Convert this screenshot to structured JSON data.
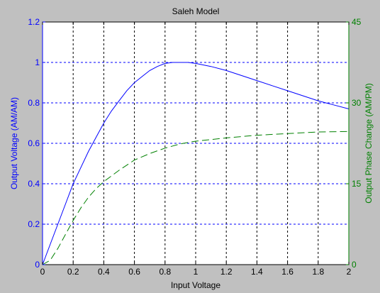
{
  "chart_data": {
    "type": "line",
    "title": "Saleh Model",
    "xlabel": "Input Voltage",
    "ylabel_left": "Output Voltage (AM/AM)",
    "ylabel_right": "Output Phase Change (AM/PM)",
    "xlim": [
      0,
      2
    ],
    "ylim_left": [
      0,
      1.2
    ],
    "ylim_right": [
      0,
      45
    ],
    "xticks": [
      "0",
      "0.2",
      "0.4",
      "0.6",
      "0.8",
      "1",
      "1.2",
      "1.4",
      "1.6",
      "1.8",
      "2"
    ],
    "yticks_left": [
      "0",
      "0.2",
      "0.4",
      "0.6",
      "0.8",
      "1",
      "1.2"
    ],
    "yticks_right": [
      "0",
      "15",
      "30",
      "45"
    ],
    "grid": true,
    "series": [
      {
        "axis": "left",
        "color": "#0000ff",
        "style": "solid",
        "x": [
          0,
          0.05,
          0.1,
          0.15,
          0.2,
          0.25,
          0.3,
          0.35,
          0.4,
          0.45,
          0.5,
          0.55,
          0.6,
          0.65,
          0.7,
          0.75,
          0.8,
          0.85,
          0.9,
          0.95,
          1.0,
          1.1,
          1.2,
          1.3,
          1.4,
          1.5,
          1.6,
          1.7,
          1.8,
          1.9,
          2.0
        ],
        "y": [
          0,
          0.1,
          0.2,
          0.3,
          0.4,
          0.48,
          0.56,
          0.63,
          0.7,
          0.76,
          0.81,
          0.86,
          0.9,
          0.93,
          0.96,
          0.98,
          0.995,
          1.0,
          1.0,
          1.0,
          0.995,
          0.98,
          0.96,
          0.935,
          0.91,
          0.885,
          0.86,
          0.835,
          0.81,
          0.79,
          0.77
        ]
      },
      {
        "axis": "right",
        "color": "#008000",
        "style": "dashed",
        "x": [
          0,
          0.05,
          0.1,
          0.15,
          0.2,
          0.25,
          0.3,
          0.35,
          0.4,
          0.5,
          0.6,
          0.7,
          0.8,
          0.9,
          1.0,
          1.1,
          1.2,
          1.4,
          1.6,
          1.8,
          2.0
        ],
        "y": [
          0,
          0.8,
          3.0,
          5.6,
          8.2,
          10.5,
          12.5,
          14.1,
          15.4,
          17.5,
          19.4,
          20.6,
          21.6,
          22.4,
          22.9,
          23.2,
          23.5,
          24.0,
          24.3,
          24.6,
          24.7
        ]
      }
    ],
    "colors": {
      "left_axis": "#0000ff",
      "right_axis": "#008000",
      "title": "#000000",
      "grid": "#000000"
    }
  }
}
